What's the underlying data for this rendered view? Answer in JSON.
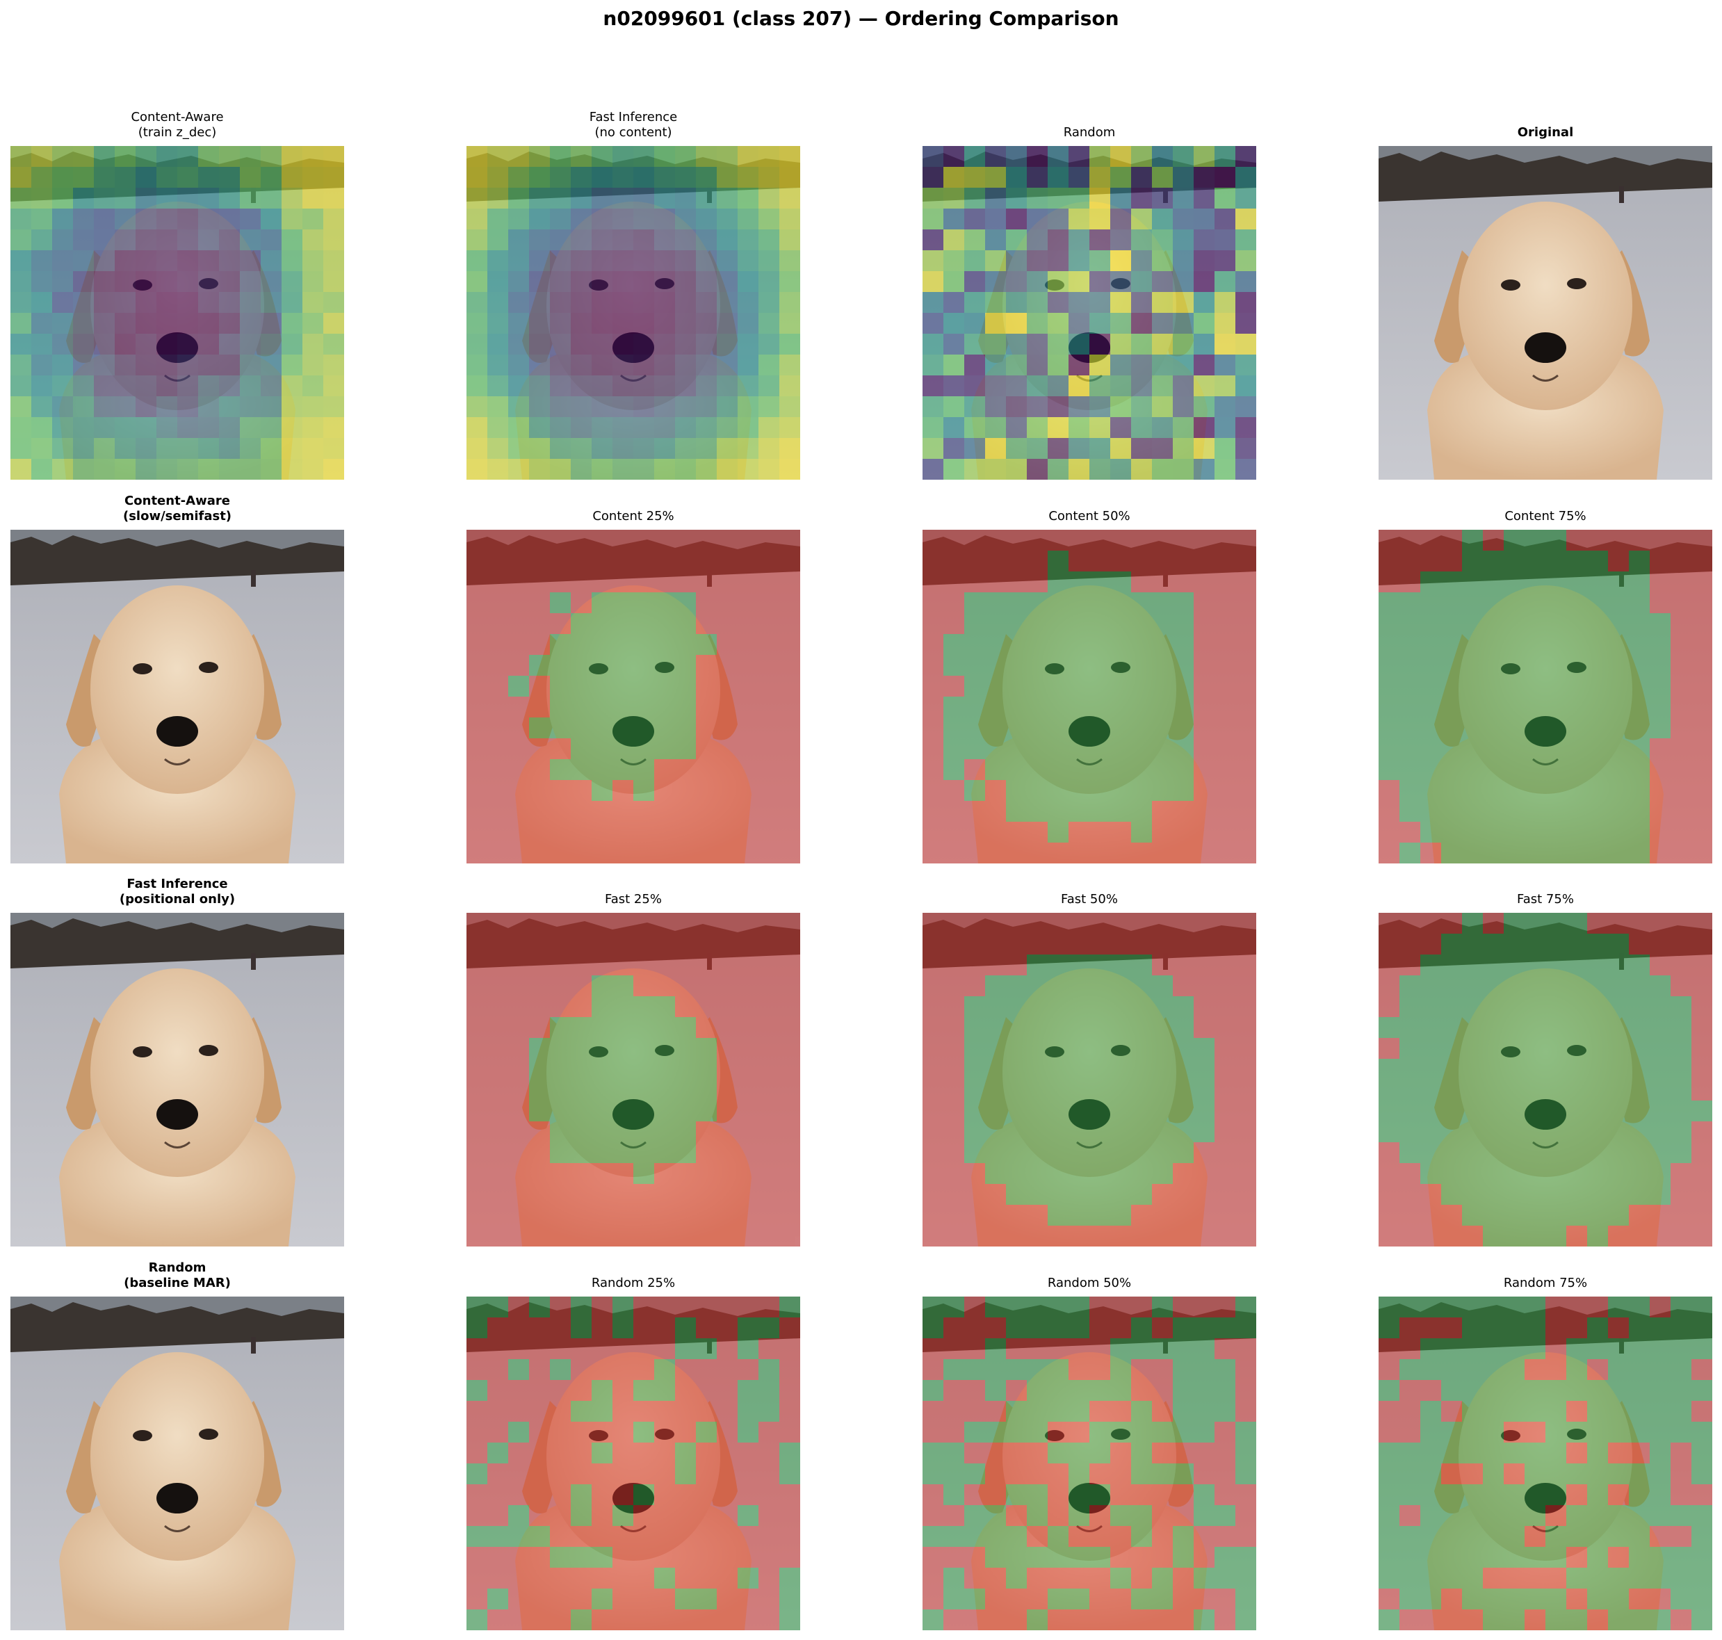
{
  "figure": {
    "title": "n02099601 (class 207) — Ordering Comparison"
  },
  "colors": {
    "reveal_on": "#2ea043",
    "reveal_off": "#d9322b",
    "viridis": [
      "#440154",
      "#3b528b",
      "#21918c",
      "#5ec962",
      "#fde725"
    ]
  },
  "panels": [
    {
      "title": "Content-Aware\n(train z_dec)",
      "bold": false,
      "image": "golden retriever photo",
      "overlay": "order-heatmap",
      "ordering": "content"
    },
    {
      "title": "Fast Inference\n(no content)",
      "bold": false,
      "image": "golden retriever photo",
      "overlay": "order-heatmap",
      "ordering": "fast"
    },
    {
      "title": "Random",
      "bold": false,
      "image": "golden retriever photo",
      "overlay": "order-heatmap",
      "ordering": "random"
    },
    {
      "title": "Original",
      "bold": true,
      "image": "golden retriever photo",
      "overlay": "none"
    },
    {
      "title": "Content-Aware\n(slow/semifast)",
      "bold": true,
      "image": "golden retriever photo",
      "overlay": "none"
    },
    {
      "title": "Content 25%",
      "bold": false,
      "image": "golden retriever photo",
      "overlay": "reveal-mask",
      "ordering": "content",
      "fraction": 0.25
    },
    {
      "title": "Content 50%",
      "bold": false,
      "image": "golden retriever photo",
      "overlay": "reveal-mask",
      "ordering": "content",
      "fraction": 0.5
    },
    {
      "title": "Content 75%",
      "bold": false,
      "image": "golden retriever photo",
      "overlay": "reveal-mask",
      "ordering": "content",
      "fraction": 0.75
    },
    {
      "title": "Fast Inference\n(positional only)",
      "bold": true,
      "image": "golden retriever photo",
      "overlay": "none"
    },
    {
      "title": "Fast 25%",
      "bold": false,
      "image": "golden retriever photo",
      "overlay": "reveal-mask",
      "ordering": "fast",
      "fraction": 0.25
    },
    {
      "title": "Fast 50%",
      "bold": false,
      "image": "golden retriever photo",
      "overlay": "reveal-mask",
      "ordering": "fast",
      "fraction": 0.5
    },
    {
      "title": "Fast 75%",
      "bold": false,
      "image": "golden retriever photo",
      "overlay": "reveal-mask",
      "ordering": "fast",
      "fraction": 0.75
    },
    {
      "title": "Random\n(baseline MAR)",
      "bold": true,
      "image": "golden retriever photo",
      "overlay": "none"
    },
    {
      "title": "Random 25%",
      "bold": false,
      "image": "golden retriever photo",
      "overlay": "reveal-mask",
      "ordering": "random",
      "fraction": 0.25
    },
    {
      "title": "Random 50%",
      "bold": false,
      "image": "golden retriever photo",
      "overlay": "reveal-mask",
      "ordering": "random",
      "fraction": 0.5
    },
    {
      "title": "Random 75%",
      "bold": false,
      "image": "golden retriever photo",
      "overlay": "reveal-mask",
      "ordering": "random",
      "fraction": 0.75
    }
  ]
}
